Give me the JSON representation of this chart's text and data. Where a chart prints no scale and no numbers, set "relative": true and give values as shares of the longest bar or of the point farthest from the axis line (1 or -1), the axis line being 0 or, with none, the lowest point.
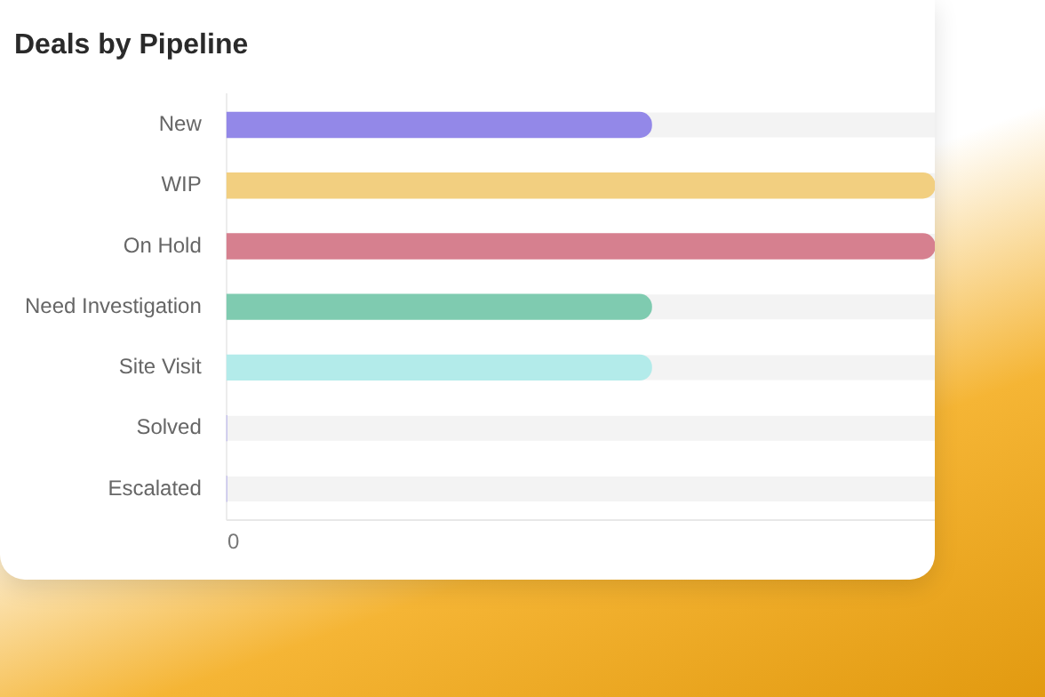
{
  "chart_data": {
    "type": "bar",
    "orientation": "horizontal",
    "relative": true,
    "title": "Deals by Pipeline",
    "categories": [
      "New",
      "WIP",
      "On Hold",
      "Need Investigation",
      "Site Visit",
      "Solved",
      "Escalated"
    ],
    "values": [
      0.6,
      1,
      1,
      0.6,
      0.6,
      0,
      0
    ],
    "colors": [
      "#9388e8",
      "#f2cf80",
      "#d6808f",
      "#7fcbb0",
      "#b3ebea",
      "#9388e8",
      "#9388e8"
    ],
    "annotations": [
      "0"
    ]
  }
}
